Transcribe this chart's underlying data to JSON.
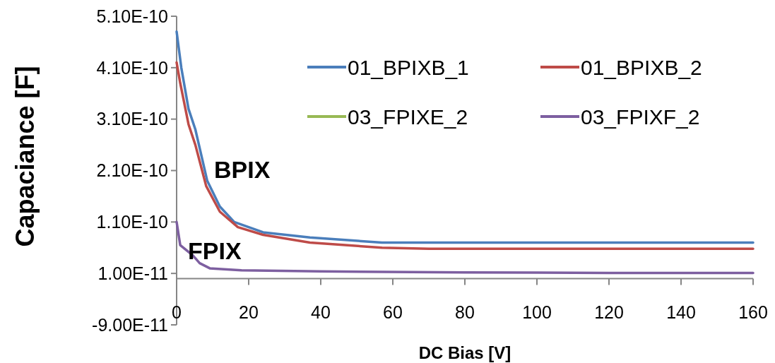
{
  "chart_data": {
    "type": "line",
    "xlabel": "DC Bias [V]",
    "ylabel": "Capaciance [F]",
    "xlim": [
      0,
      160
    ],
    "xticks": [
      0,
      20,
      40,
      60,
      80,
      100,
      120,
      140,
      160
    ],
    "ylim": [
      -9e-11,
      5.1e-10
    ],
    "yticks": [
      {
        "value": -9e-11,
        "label": "-9.00E-11"
      },
      {
        "value": 1e-11,
        "label": "1.00E-11"
      },
      {
        "value": 1.1e-10,
        "label": "1.10E-10"
      },
      {
        "value": 2.1e-10,
        "label": "2.10E-10"
      },
      {
        "value": 3.1e-10,
        "label": "3.10E-10"
      },
      {
        "value": 4.1e-10,
        "label": "4.10E-10"
      },
      {
        "value": 5.1e-10,
        "label": "5.10E-10"
      }
    ],
    "grid": false,
    "legend": "top right",
    "marker": "none",
    "line_style": "solid",
    "annotations": [
      "BPIX",
      "FPIX"
    ],
    "series": [
      {
        "name": "01_BPIXB_1",
        "color": "#4a7ebb",
        "x": [
          0,
          1.3,
          3.3,
          5.2,
          8.5,
          12,
          16,
          24,
          37,
          57,
          70,
          100,
          130,
          160
        ],
        "values": [
          4.8e-10,
          4.1e-10,
          3.3e-10,
          2.9e-10,
          1.9e-10,
          1.4e-10,
          1.1e-10,
          9e-11,
          8e-11,
          7e-11,
          7e-11,
          7e-11,
          7e-11,
          7e-11
        ]
      },
      {
        "name": "01_BPIXB_2",
        "color": "#be4b48",
        "x": [
          0,
          1,
          3.3,
          5.2,
          8.2,
          12,
          17,
          24,
          37,
          57,
          70,
          100,
          130,
          160
        ],
        "values": [
          4.2e-10,
          3.8e-10,
          3e-10,
          2.6e-10,
          1.8e-10,
          1.3e-10,
          1e-10,
          8.5e-11,
          7e-11,
          6e-11,
          5.8e-11,
          5.8e-11,
          5.8e-11,
          5.8e-11
        ]
      },
      {
        "name": "03_FPIXE_2",
        "color": "#98b954",
        "values": [
          null,
          null
        ]
      },
      {
        "name": "03_FPIXF_2",
        "color": "#7d5fa0",
        "x": [
          0,
          1,
          4.5,
          6.4,
          9.2,
          18,
          40,
          80,
          120,
          160
        ],
        "values": [
          1.1e-10,
          6.5e-11,
          4.5e-11,
          3e-11,
          2e-11,
          1.6e-11,
          1.4e-11,
          1.2e-11,
          1.1e-11,
          1.1e-11
        ]
      }
    ]
  }
}
